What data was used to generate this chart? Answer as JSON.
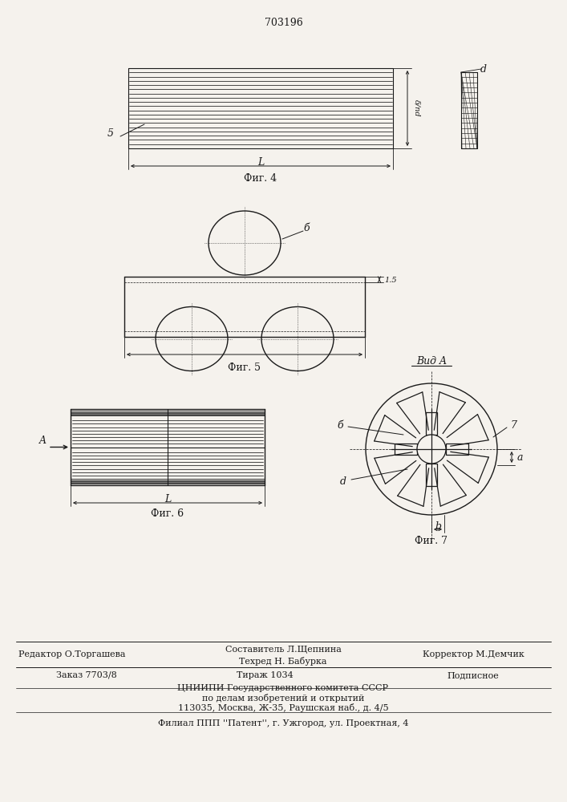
{
  "title": "703196",
  "bg_color": "#f5f2ed",
  "line_color": "#1a1a1a",
  "fig4_label": "Фиг. 4",
  "fig5_label": "Фиг. 5",
  "fig6_label": "Фиг. 6",
  "fig7_label": "Фиг. 7",
  "vid_a_label": "Вид A",
  "label_5": "5",
  "label_6": "б",
  "label_7": "7",
  "label_b": "б",
  "label_d": "d",
  "label_a_small": "a",
  "label_L": "L",
  "label_15": "1.5",
  "editor_line": "Редактор О.Торгашева",
  "composer_line": "Составитель Л.Щепнина",
  "techred_line": "Техред Н. Бабурка",
  "corrector_line": "Корректор М.Демчик",
  "order_line": "Заказ 7703/8",
  "tirazh_line": "Тираж 1034",
  "podpisnoe_line": "Подписное",
  "tsniipi_line1": "ЦНИИПИ Государственного комитета СССР",
  "tsniipi_line2": "по делам изобретений и открытий",
  "tsniipi_line3": "113035, Москва, Ж-35, Раушская наб., д. 4/5",
  "filial_line": "Филиал ППП ''Патент'', г. Ужгород, ул. Проектная, 4"
}
